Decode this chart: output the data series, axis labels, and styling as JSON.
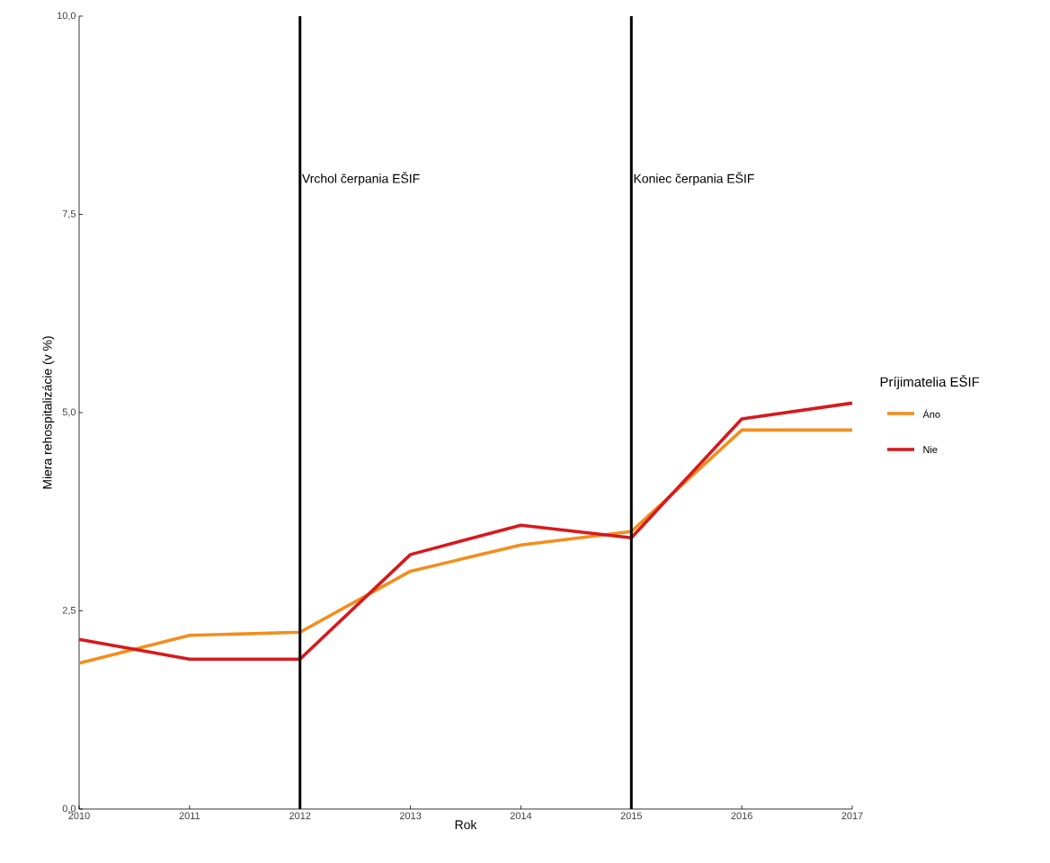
{
  "chart_data": {
    "type": "line",
    "xlabel": "Rok",
    "ylabel": "Miera rehospitalizácie (v %)",
    "legend_title": "Príjimatelia EŠIF",
    "x": [
      2010,
      2011,
      2012,
      2013,
      2014,
      2015,
      2016,
      2017
    ],
    "series": [
      {
        "name": "Áno",
        "color": "#f28e1c",
        "values": [
          1.84,
          2.19,
          2.23,
          3.0,
          3.33,
          3.5,
          4.78,
          4.78
        ]
      },
      {
        "name": "Nie",
        "color": "#d7191c",
        "values": [
          2.14,
          1.89,
          1.89,
          3.21,
          3.58,
          3.42,
          4.92,
          5.12
        ]
      }
    ],
    "ref_lines": [
      {
        "axis": "x",
        "value": 2012,
        "label": "Vrchol čerpania EŠIF",
        "color": "#000000"
      },
      {
        "axis": "x",
        "value": 2015,
        "label": "Koniec čerpania EŠIF",
        "color": "#000000"
      }
    ],
    "xlim": [
      2010,
      2017
    ],
    "ylim": [
      0,
      10
    ],
    "xticks": [
      2010,
      2011,
      2012,
      2013,
      2014,
      2015,
      2016,
      2017
    ],
    "yticks": [
      {
        "value": 0,
        "label": "0,0"
      },
      {
        "value": 2.5,
        "label": "2,5"
      },
      {
        "value": 5,
        "label": "5,0"
      },
      {
        "value": 7.5,
        "label": "7,5"
      },
      {
        "value": 10,
        "label": "10,0"
      }
    ],
    "grid": false,
    "legend": "right",
    "marker": "none",
    "line_style": "solid"
  }
}
